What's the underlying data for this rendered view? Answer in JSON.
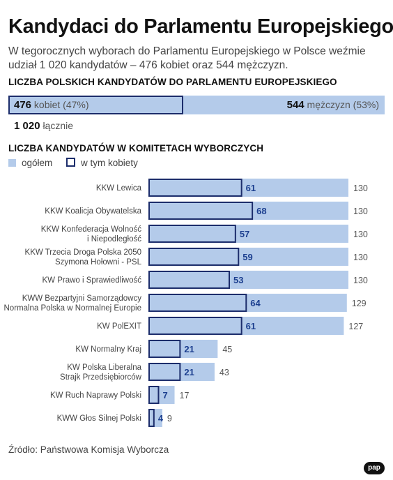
{
  "title": "Kandydaci do Parlamentu Europejskiego",
  "subtitle": "W tegorocznych wyborach do Parlamentu Europejskiego w Polsce weźmie udział 1 020 kandydatów – 476 kobiet oraz 544 mężczyzn.",
  "summary": {
    "section_title": "LICZBA POLSKICH KANDYDATÓW DO PARLAMENTU EUROPEJSKIEGO",
    "women_value": "476",
    "women_label": "kobiet (47%)",
    "men_value": "544",
    "men_label": "mężczyzn (53%)",
    "total_value": "1 020",
    "total_label": "łącznie",
    "women_fraction": 0.47
  },
  "committees": {
    "section_title": "LICZBA KANDYDATÓW W KOMITETACH WYBORCZYCH",
    "legend_total": "ogółem",
    "legend_women": "w tym kobiety"
  },
  "colors": {
    "fill": "#b4cbea",
    "outline": "#1c2d6b",
    "women_label": "#1c3f8f"
  },
  "chart_data": {
    "type": "bar",
    "orientation": "horizontal",
    "categories": [
      [
        "KKW Lewica"
      ],
      [
        "KKW Koalicja Obywatelska"
      ],
      [
        "KKW Konfederacja Wolność",
        "i Niepodległość"
      ],
      [
        "KKW Trzecia Droga Polska 2050",
        "Szymona Hołowni - PSL"
      ],
      [
        "KW Prawo i Sprawiedliwość"
      ],
      [
        "KWW Bezpartyjni Samorządowcy",
        "Normalna Polska w Normalnej Europie"
      ],
      [
        "KW PolEXIT"
      ],
      [
        "KW Normalny Kraj"
      ],
      [
        "KW Polska Liberalna",
        "Strajk Przedsiębiorców"
      ],
      [
        "KW Ruch Naprawy Polski"
      ],
      [
        "KWW Głos Silnej Polski"
      ]
    ],
    "series": [
      {
        "name": "ogółem",
        "values": [
          130,
          130,
          130,
          130,
          130,
          129,
          127,
          45,
          43,
          17,
          9
        ]
      },
      {
        "name": "w tym kobiety",
        "values": [
          61,
          68,
          57,
          59,
          53,
          64,
          61,
          21,
          21,
          7,
          4
        ]
      }
    ],
    "xlim": [
      0,
      130
    ]
  },
  "source": "Źródło: Państwowa Komisja Wyborcza",
  "logo": "pap"
}
